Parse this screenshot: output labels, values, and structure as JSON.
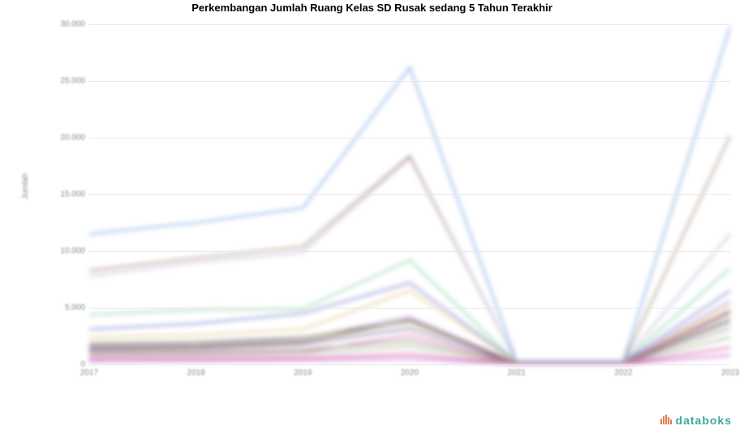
{
  "chart": {
    "type": "line",
    "title": "Perkembangan Jumlah Ruang Kelas SD Rusak sedang 5 Tahun Terakhir",
    "title_fontsize": 13,
    "background_color": "#ffffff",
    "grid_color": "#e8e8e8",
    "axis_label_color": "#888888",
    "y_axis_title": "Jumlah",
    "xlim": [
      2017,
      2023
    ],
    "ylim": [
      0,
      30000
    ],
    "ytick_step": 5000,
    "y_ticks": [
      "0",
      "5.000",
      "10.000",
      "15.000",
      "20.000",
      "25.000",
      "30.000"
    ],
    "x_categories": [
      "2017",
      "2018",
      "2019",
      "2020",
      "2021",
      "2022",
      "2023"
    ],
    "line_width": 1.8,
    "blur_applied": true,
    "series": [
      {
        "color": "#7da8e6",
        "values": [
          11500,
          12500,
          13800,
          26200,
          300,
          300,
          29800
        ]
      },
      {
        "color": "#a99383",
        "values": [
          8300,
          9400,
          10400,
          18400,
          250,
          250,
          20200
        ]
      },
      {
        "color": "#c7b9d9",
        "values": [
          7800,
          9000,
          9900,
          18200,
          240,
          240,
          11500
        ]
      },
      {
        "color": "#8fd4a8",
        "values": [
          4400,
          4800,
          4900,
          9200,
          200,
          200,
          8500
        ]
      },
      {
        "color": "#7d86d4",
        "values": [
          3100,
          3600,
          4500,
          7200,
          180,
          180,
          6500
        ]
      },
      {
        "color": "#e6c98c",
        "values": [
          2400,
          2600,
          3100,
          6500,
          150,
          150,
          5200
        ]
      },
      {
        "color": "#b88fc9",
        "values": [
          1700,
          1800,
          2300,
          4200,
          120,
          120,
          5600
        ]
      },
      {
        "color": "#8a9a6f",
        "values": [
          1900,
          2000,
          2400,
          3800,
          120,
          120,
          4000
        ]
      },
      {
        "color": "#6b5640",
        "values": [
          1500,
          1600,
          2000,
          3900,
          100,
          100,
          4700
        ]
      },
      {
        "color": "#7a6a90",
        "values": [
          1300,
          1400,
          1800,
          3200,
          100,
          100,
          3800
        ]
      },
      {
        "color": "#d67fb6",
        "values": [
          900,
          950,
          1100,
          2600,
          90,
          90,
          4500
        ]
      },
      {
        "color": "#9e8b7d",
        "values": [
          1100,
          1150,
          1350,
          2100,
          80,
          80,
          3200
        ]
      },
      {
        "color": "#a0b590",
        "values": [
          800,
          850,
          1000,
          1600,
          70,
          70,
          2400
        ]
      },
      {
        "color": "#d44d9e",
        "values": [
          500,
          520,
          600,
          900,
          50,
          50,
          1500
        ]
      },
      {
        "color": "#cc66cc",
        "values": [
          300,
          320,
          380,
          500,
          40,
          40,
          800
        ]
      }
    ]
  },
  "watermark": {
    "text": "databoks",
    "icon_color": "#e67a4a",
    "text_color": "#3aa8a0"
  }
}
